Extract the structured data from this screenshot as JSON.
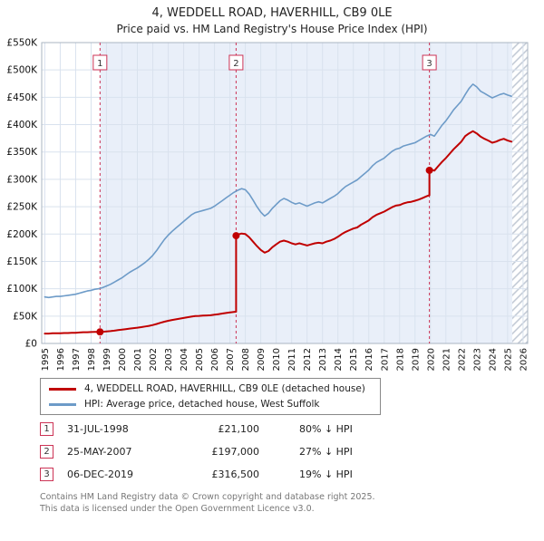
{
  "title": "4, WEDDELL ROAD, HAVERHILL, CB9 0LE",
  "subtitle": "Price paid vs. HM Land Registry's House Price Index (HPI)",
  "legend": [
    {
      "label": "4, WEDDELL ROAD, HAVERHILL, CB9 0LE (detached house)",
      "color": "#c00000"
    },
    {
      "label": "HPI: Average price, detached house, West Suffolk",
      "color": "#6d9bc8"
    }
  ],
  "transactions": [
    {
      "num": "1",
      "date": "31-JUL-1998",
      "price": "£21,100",
      "hpi": "80% ↓ HPI"
    },
    {
      "num": "2",
      "date": "25-MAY-2007",
      "price": "£197,000",
      "hpi": "27% ↓ HPI"
    },
    {
      "num": "3",
      "date": "06-DEC-2019",
      "price": "£316,500",
      "hpi": "19% ↓ HPI"
    }
  ],
  "footer": {
    "line1": "Contains HM Land Registry data © Crown copyright and database right 2025.",
    "line2": "This data is licensed under the Open Government Licence v3.0."
  },
  "chart_data": {
    "type": "line",
    "title": "4, WEDDELL ROAD, HAVERHILL, CB9 0LE — Price paid vs. HPI",
    "value_unit": "GBP thousands",
    "x_range": [
      1994.8,
      2026.3
    ],
    "y_range": [
      0,
      550
    ],
    "x_ticks": [
      1995,
      1996,
      1997,
      1998,
      1999,
      2000,
      2001,
      2002,
      2003,
      2004,
      2005,
      2006,
      2007,
      2008,
      2009,
      2010,
      2011,
      2012,
      2013,
      2014,
      2015,
      2016,
      2017,
      2018,
      2019,
      2020,
      2021,
      2022,
      2023,
      2024,
      2025,
      2026
    ],
    "y_ticks": [
      0,
      50,
      100,
      150,
      200,
      250,
      300,
      350,
      400,
      450,
      500,
      550
    ],
    "y_tick_labels": [
      "£0",
      "£50K",
      "£100K",
      "£150K",
      "£200K",
      "£250K",
      "£300K",
      "£350K",
      "£400K",
      "£450K",
      "£500K",
      "£550K"
    ],
    "grid": true,
    "legend_position": "below",
    "band": {
      "from": 1998.58,
      "to": 2025.3
    },
    "hatch": {
      "from": 2025.3,
      "to": 2026.3
    },
    "colors": {
      "band": "#e9eff9",
      "grid": "#d9e2ee",
      "sale_line": "#cc3355",
      "hatch": "#bfc7d3",
      "border": "#aab4c2"
    },
    "sales": [
      {
        "label": "1",
        "x": 1998.58,
        "value": 21.1,
        "date": "31-JUL-1998",
        "price_gbp": 21100,
        "vs_hpi": "80% below HPI"
      },
      {
        "label": "2",
        "x": 2007.4,
        "value": 197,
        "date": "25-MAY-2007",
        "price_gbp": 197000,
        "vs_hpi": "27% below HPI"
      },
      {
        "label": "3",
        "x": 2019.93,
        "value": 316.5,
        "date": "06-DEC-2019",
        "price_gbp": 316500,
        "vs_hpi": "19% below HPI"
      }
    ],
    "series": [
      {
        "name": "HPI: Average price, detached house, West Suffolk",
        "color": "#6d9bc8",
        "width": 1.6,
        "points": [
          [
            1995,
            85
          ],
          [
            1995.25,
            84
          ],
          [
            1995.5,
            85
          ],
          [
            1995.75,
            86
          ],
          [
            1996,
            86
          ],
          [
            1996.25,
            87
          ],
          [
            1996.5,
            88
          ],
          [
            1996.75,
            89
          ],
          [
            1997,
            90
          ],
          [
            1997.25,
            92
          ],
          [
            1997.5,
            94
          ],
          [
            1997.75,
            96
          ],
          [
            1998,
            97
          ],
          [
            1998.25,
            99
          ],
          [
            1998.5,
            100
          ],
          [
            1998.75,
            102
          ],
          [
            1999,
            105
          ],
          [
            1999.25,
            108
          ],
          [
            1999.5,
            112
          ],
          [
            1999.75,
            116
          ],
          [
            2000,
            120
          ],
          [
            2000.25,
            125
          ],
          [
            2000.5,
            130
          ],
          [
            2000.75,
            134
          ],
          [
            2001,
            138
          ],
          [
            2001.25,
            143
          ],
          [
            2001.5,
            148
          ],
          [
            2001.75,
            154
          ],
          [
            2002,
            161
          ],
          [
            2002.25,
            170
          ],
          [
            2002.5,
            180
          ],
          [
            2002.75,
            190
          ],
          [
            2003,
            198
          ],
          [
            2003.25,
            205
          ],
          [
            2003.5,
            211
          ],
          [
            2003.75,
            217
          ],
          [
            2004,
            223
          ],
          [
            2004.25,
            229
          ],
          [
            2004.5,
            235
          ],
          [
            2004.75,
            239
          ],
          [
            2005,
            241
          ],
          [
            2005.25,
            243
          ],
          [
            2005.5,
            245
          ],
          [
            2005.75,
            247
          ],
          [
            2006,
            251
          ],
          [
            2006.25,
            256
          ],
          [
            2006.5,
            261
          ],
          [
            2006.75,
            266
          ],
          [
            2007,
            271
          ],
          [
            2007.25,
            276
          ],
          [
            2007.5,
            280
          ],
          [
            2007.75,
            283
          ],
          [
            2008,
            281
          ],
          [
            2008.25,
            273
          ],
          [
            2008.5,
            262
          ],
          [
            2008.75,
            250
          ],
          [
            2009,
            240
          ],
          [
            2009.25,
            233
          ],
          [
            2009.5,
            238
          ],
          [
            2009.75,
            247
          ],
          [
            2010,
            254
          ],
          [
            2010.25,
            261
          ],
          [
            2010.5,
            265
          ],
          [
            2010.75,
            262
          ],
          [
            2011,
            258
          ],
          [
            2011.25,
            255
          ],
          [
            2011.5,
            257
          ],
          [
            2011.75,
            254
          ],
          [
            2012,
            251
          ],
          [
            2012.25,
            254
          ],
          [
            2012.5,
            257
          ],
          [
            2012.75,
            259
          ],
          [
            2013,
            257
          ],
          [
            2013.25,
            261
          ],
          [
            2013.5,
            265
          ],
          [
            2013.75,
            269
          ],
          [
            2014,
            274
          ],
          [
            2014.25,
            281
          ],
          [
            2014.5,
            287
          ],
          [
            2014.75,
            291
          ],
          [
            2015,
            295
          ],
          [
            2015.25,
            299
          ],
          [
            2015.5,
            305
          ],
          [
            2015.75,
            311
          ],
          [
            2016,
            317
          ],
          [
            2016.25,
            325
          ],
          [
            2016.5,
            331
          ],
          [
            2016.75,
            335
          ],
          [
            2017,
            339
          ],
          [
            2017.25,
            345
          ],
          [
            2017.5,
            351
          ],
          [
            2017.75,
            355
          ],
          [
            2018,
            357
          ],
          [
            2018.25,
            361
          ],
          [
            2018.5,
            363
          ],
          [
            2018.75,
            365
          ],
          [
            2019,
            367
          ],
          [
            2019.25,
            371
          ],
          [
            2019.5,
            375
          ],
          [
            2019.75,
            379
          ],
          [
            2020,
            382
          ],
          [
            2020.25,
            379
          ],
          [
            2020.5,
            389
          ],
          [
            2020.75,
            399
          ],
          [
            2021,
            407
          ],
          [
            2021.25,
            417
          ],
          [
            2021.5,
            427
          ],
          [
            2021.75,
            435
          ],
          [
            2022,
            443
          ],
          [
            2022.25,
            455
          ],
          [
            2022.5,
            466
          ],
          [
            2022.75,
            474
          ],
          [
            2023,
            469
          ],
          [
            2023.25,
            461
          ],
          [
            2023.5,
            457
          ],
          [
            2023.75,
            453
          ],
          [
            2024,
            449
          ],
          [
            2024.25,
            452
          ],
          [
            2024.5,
            455
          ],
          [
            2024.75,
            457
          ],
          [
            2025,
            454
          ],
          [
            2025.25,
            452
          ]
        ]
      },
      {
        "name": "4, WEDDELL ROAD, HAVERHILL, CB9 0LE (detached house)",
        "color": "#c00000",
        "width": 2,
        "points": [
          [
            1995,
            18
          ],
          [
            1995.25,
            18
          ],
          [
            1995.5,
            18.5
          ],
          [
            1995.75,
            18.5
          ],
          [
            1996,
            18.5
          ],
          [
            1996.25,
            19
          ],
          [
            1996.5,
            19
          ],
          [
            1996.75,
            19.5
          ],
          [
            1997,
            19.5
          ],
          [
            1997.25,
            20
          ],
          [
            1997.5,
            20.5
          ],
          [
            1997.75,
            20.5
          ],
          [
            1998,
            20.8
          ],
          [
            1998.25,
            21
          ],
          [
            1998.58,
            21.1
          ],
          [
            1998.75,
            21.4
          ],
          [
            1999,
            22
          ],
          [
            1999.25,
            22.6
          ],
          [
            1999.5,
            23.4
          ],
          [
            1999.75,
            24.3
          ],
          [
            2000,
            25.1
          ],
          [
            2000.25,
            26.2
          ],
          [
            2000.5,
            27.2
          ],
          [
            2000.75,
            28
          ],
          [
            2001,
            28.9
          ],
          [
            2001.25,
            29.9
          ],
          [
            2001.5,
            31
          ],
          [
            2001.75,
            32.2
          ],
          [
            2002,
            33.7
          ],
          [
            2002.25,
            35.6
          ],
          [
            2002.5,
            37.7
          ],
          [
            2002.75,
            39.7
          ],
          [
            2003,
            41.4
          ],
          [
            2003.25,
            42.9
          ],
          [
            2003.5,
            44.1
          ],
          [
            2003.75,
            45.4
          ],
          [
            2004,
            46.6
          ],
          [
            2004.25,
            47.9
          ],
          [
            2004.5,
            49.1
          ],
          [
            2004.75,
            50
          ],
          [
            2005,
            50.4
          ],
          [
            2005.25,
            50.8
          ],
          [
            2005.5,
            51.2
          ],
          [
            2005.75,
            51.6
          ],
          [
            2006,
            52.5
          ],
          [
            2006.25,
            53.5
          ],
          [
            2006.5,
            54.6
          ],
          [
            2006.75,
            55.6
          ],
          [
            2007,
            56.6
          ],
          [
            2007.25,
            57.5
          ],
          [
            2007.4,
            57.9
          ],
          [
            2007.4,
            197
          ],
          [
            2007.5,
            199
          ],
          [
            2007.75,
            201
          ],
          [
            2008,
            200
          ],
          [
            2008.25,
            194
          ],
          [
            2008.5,
            186
          ],
          [
            2008.75,
            178
          ],
          [
            2009,
            171
          ],
          [
            2009.25,
            166
          ],
          [
            2009.5,
            169
          ],
          [
            2009.75,
            176
          ],
          [
            2010,
            181
          ],
          [
            2010.25,
            186
          ],
          [
            2010.5,
            188
          ],
          [
            2010.75,
            186
          ],
          [
            2011,
            183
          ],
          [
            2011.25,
            181
          ],
          [
            2011.5,
            183
          ],
          [
            2011.75,
            181
          ],
          [
            2012,
            179
          ],
          [
            2012.25,
            181
          ],
          [
            2012.5,
            183
          ],
          [
            2012.75,
            184
          ],
          [
            2013,
            183
          ],
          [
            2013.25,
            186
          ],
          [
            2013.5,
            188
          ],
          [
            2013.75,
            191
          ],
          [
            2014,
            195
          ],
          [
            2014.25,
            200
          ],
          [
            2014.5,
            204
          ],
          [
            2014.75,
            207
          ],
          [
            2015,
            210
          ],
          [
            2015.25,
            212
          ],
          [
            2015.5,
            217
          ],
          [
            2015.75,
            221
          ],
          [
            2016,
            225
          ],
          [
            2016.25,
            231
          ],
          [
            2016.5,
            235
          ],
          [
            2016.75,
            238
          ],
          [
            2017,
            241
          ],
          [
            2017.25,
            245
          ],
          [
            2017.5,
            249
          ],
          [
            2017.75,
            252
          ],
          [
            2018,
            253
          ],
          [
            2018.25,
            256
          ],
          [
            2018.5,
            258
          ],
          [
            2018.75,
            259
          ],
          [
            2019,
            261
          ],
          [
            2019.25,
            263
          ],
          [
            2019.5,
            266
          ],
          [
            2019.75,
            269
          ],
          [
            2019.93,
            271
          ],
          [
            2019.93,
            316.5
          ],
          [
            2020,
            318
          ],
          [
            2020.25,
            316
          ],
          [
            2020.5,
            324
          ],
          [
            2020.75,
            332
          ],
          [
            2021,
            339
          ],
          [
            2021.25,
            347
          ],
          [
            2021.5,
            355
          ],
          [
            2021.75,
            362
          ],
          [
            2022,
            369
          ],
          [
            2022.25,
            379
          ],
          [
            2022.5,
            384
          ],
          [
            2022.75,
            388
          ],
          [
            2023,
            384
          ],
          [
            2023.25,
            378
          ],
          [
            2023.5,
            374
          ],
          [
            2023.75,
            371
          ],
          [
            2024,
            367
          ],
          [
            2024.25,
            369
          ],
          [
            2024.5,
            372
          ],
          [
            2024.75,
            374
          ],
          [
            2025,
            371
          ],
          [
            2025.25,
            369
          ]
        ]
      }
    ]
  }
}
